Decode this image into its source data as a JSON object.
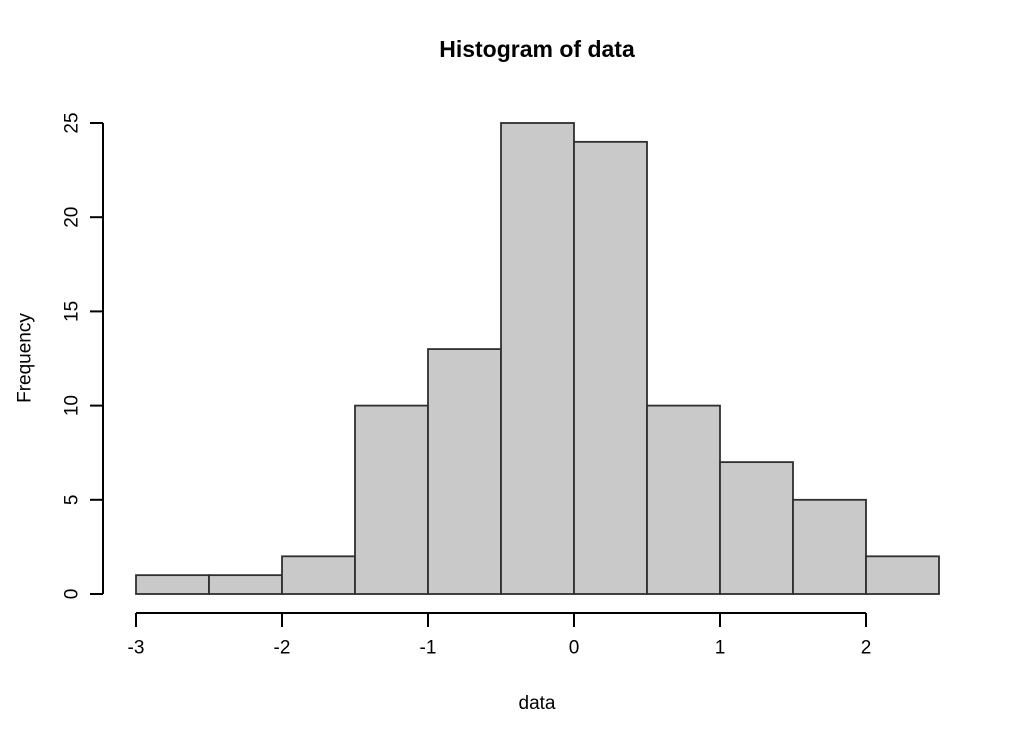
{
  "chart_data": {
    "type": "bar",
    "subtype": "histogram",
    "title": "Histogram of data",
    "xlabel": "data",
    "ylabel": "Frequency",
    "bin_edges": [
      -3,
      -2.5,
      -2,
      -1.5,
      -1,
      -0.5,
      0,
      0.5,
      1,
      1.5,
      2,
      2.5
    ],
    "counts": [
      1,
      1,
      2,
      10,
      13,
      25,
      24,
      10,
      7,
      5,
      2
    ],
    "x_ticks": [
      -3,
      -2,
      -1,
      0,
      1,
      2
    ],
    "y_ticks": [
      0,
      5,
      10,
      15,
      20,
      25
    ],
    "xlim": [
      -3.22,
      2.72
    ],
    "ylim": [
      0,
      25
    ],
    "grid": false,
    "legend": "none",
    "colors": {
      "bar_fill": "#c9c9c9",
      "bar_border": "#2f2f2f",
      "axis": "#000000",
      "text": "#000000",
      "background": "#ffffff"
    }
  }
}
